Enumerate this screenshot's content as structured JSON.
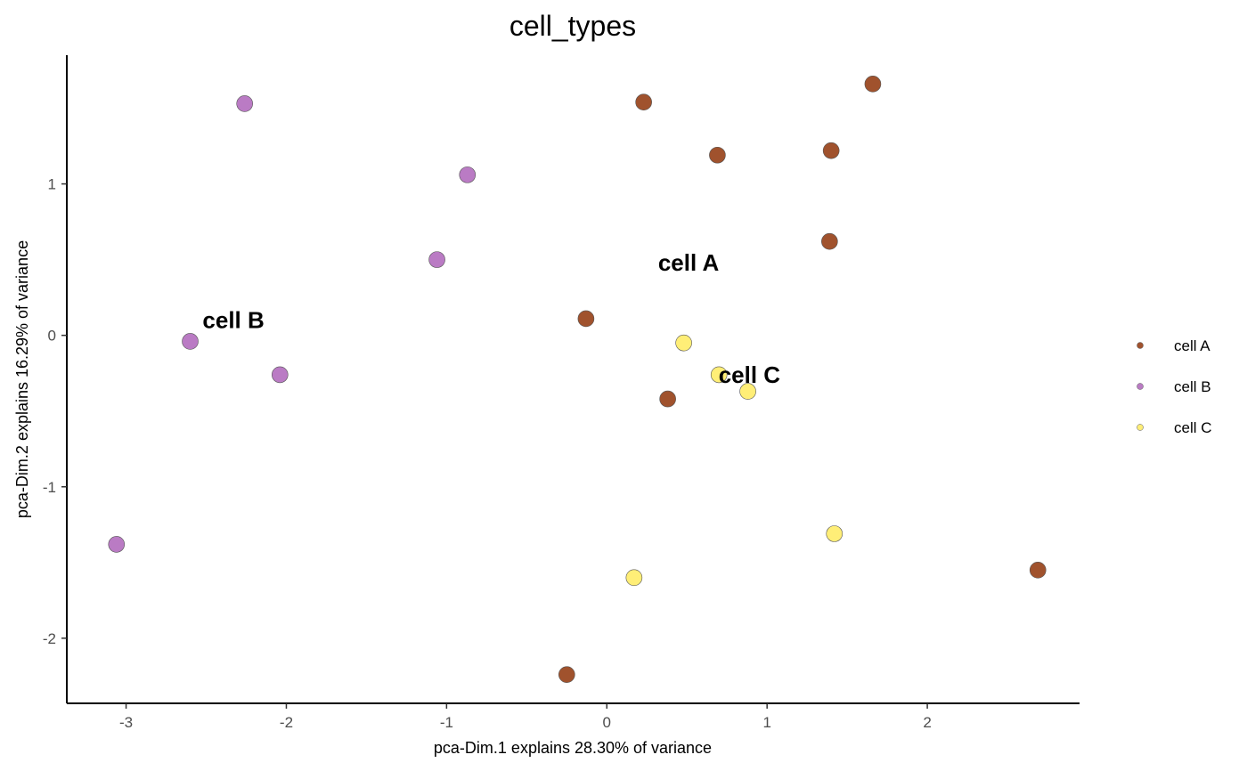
{
  "chart_data": {
    "type": "scatter",
    "title": "cell_types",
    "xlabel": "pca-Dim.1 explains 28.30% of variance",
    "ylabel": "pca-Dim.2 explains 16.29% of variance",
    "xlim": [
      -3.37,
      2.95
    ],
    "ylim": [
      -2.43,
      1.85
    ],
    "x_ticks": [
      -3,
      -2,
      -1,
      0,
      1,
      2
    ],
    "y_ticks": [
      -2,
      -1,
      0,
      1
    ],
    "grid": false,
    "legend_position": "right",
    "series": [
      {
        "name": "cell A",
        "color": "#A0522D",
        "points": [
          {
            "x": 1.66,
            "y": 1.66
          },
          {
            "x": 0.23,
            "y": 1.54
          },
          {
            "x": 0.69,
            "y": 1.19
          },
          {
            "x": 1.4,
            "y": 1.22
          },
          {
            "x": 1.39,
            "y": 0.62
          },
          {
            "x": -0.13,
            "y": 0.11
          },
          {
            "x": 0.38,
            "y": -0.42
          },
          {
            "x": 2.69,
            "y": -1.55
          },
          {
            "x": -0.25,
            "y": -2.24
          }
        ]
      },
      {
        "name": "cell B",
        "color": "#BA7BC4",
        "points": [
          {
            "x": -2.26,
            "y": 1.53
          },
          {
            "x": -0.87,
            "y": 1.06
          },
          {
            "x": -1.06,
            "y": 0.5
          },
          {
            "x": -2.6,
            "y": -0.04
          },
          {
            "x": -2.04,
            "y": -0.26
          },
          {
            "x": -3.06,
            "y": -1.38
          }
        ]
      },
      {
        "name": "cell C",
        "color": "#FFEE77",
        "points": [
          {
            "x": 0.48,
            "y": -0.05
          },
          {
            "x": 0.7,
            "y": -0.26
          },
          {
            "x": 0.88,
            "y": -0.37
          },
          {
            "x": 1.42,
            "y": -1.31
          },
          {
            "x": 0.17,
            "y": -1.6
          }
        ]
      }
    ],
    "annotations": [
      {
        "text": "cell A",
        "x": 0.51,
        "y": 0.48
      },
      {
        "text": "cell B",
        "x": -2.33,
        "y": 0.1
      },
      {
        "text": "cell C",
        "x": 0.89,
        "y": -0.26
      }
    ]
  }
}
